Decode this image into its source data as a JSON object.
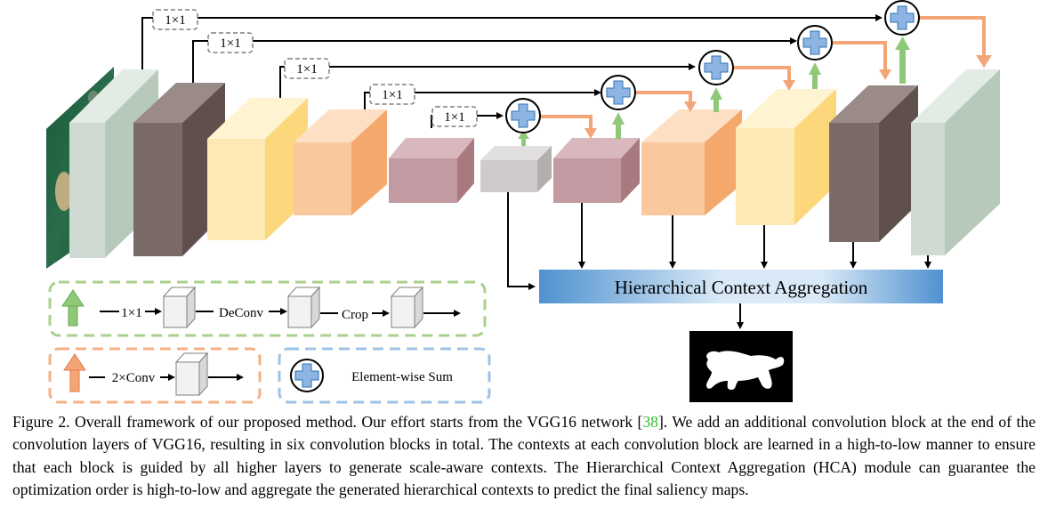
{
  "diagram": {
    "skip_labels": [
      "1×1",
      "1×1",
      "1×1",
      "1×1",
      "1×1"
    ],
    "hca_label": "Hierarchical Context Aggregation",
    "legend": {
      "green_steps": [
        "1×1",
        "DeConv",
        "Crop"
      ],
      "orange_step": "2×Conv",
      "sum_label": "Element-wise Sum"
    },
    "colors": {
      "green_arrow": "#8fc879",
      "orange_arrow": "#f4a578",
      "sum_circle": "#8db4e2",
      "hca_bar": "#4f91cf",
      "green_dash": "#a9d18e",
      "orange_dash": "#f4b183",
      "blue_dash": "#9dc3e6"
    }
  },
  "caption": {
    "before_ref": "Figure 2. Overall framework of our proposed method. Our effort starts from the VGG16 network [",
    "ref": "38",
    "after_ref": "]. We add an additional convolution block at the end of the convolution layers of VGG16, resulting in six convolution blocks in total. The contexts at each convolution block are learned in a high-to-low manner to ensure that each block is guided by all higher layers to generate scale-aware contexts. The Hierarchical Context Aggregation (HCA) module can guarantee the optimization order is high-to-low and aggregate the generated hierarchical contexts to predict the final saliency maps."
  }
}
